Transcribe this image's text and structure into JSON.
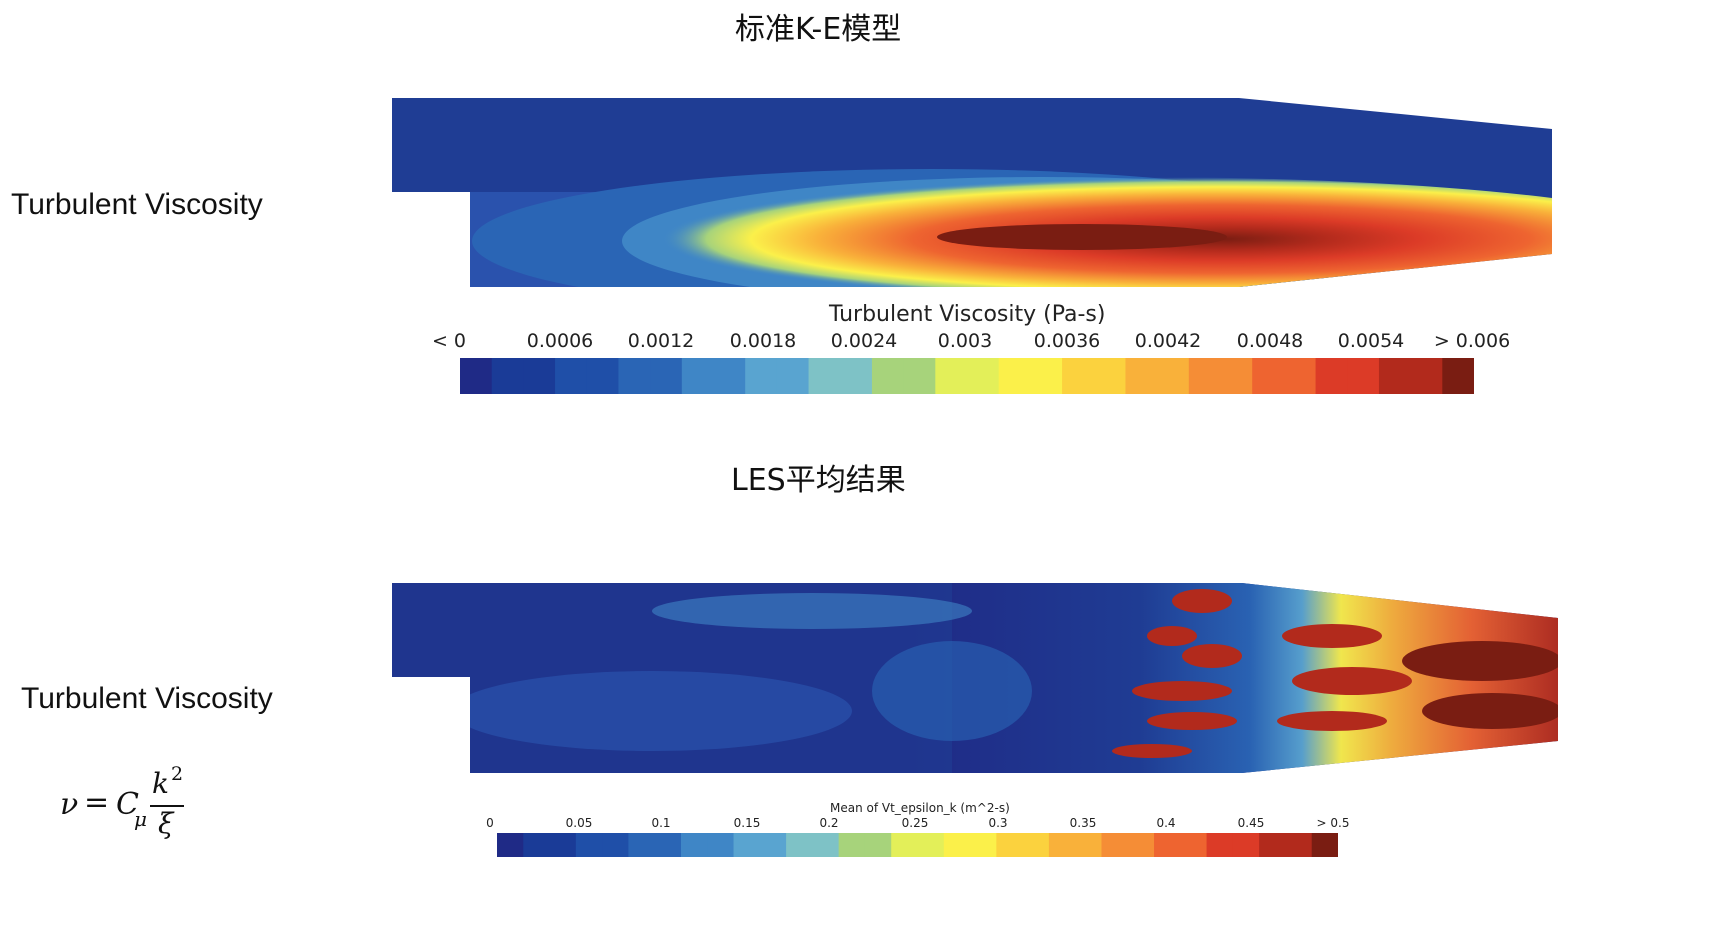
{
  "panels": [
    {
      "title": "标准K-E模型",
      "side_label": "Turbulent Viscosity",
      "colorbar": {
        "title": "Turbulent Viscosity (Pa-s)",
        "ticks": [
          "< 0",
          "0.0006",
          "0.0012",
          "0.0018",
          "0.0024",
          "0.003",
          "0.0036",
          "0.0042",
          "0.0048",
          "0.0054",
          "> 0.006"
        ]
      }
    },
    {
      "title": "LES平均结果",
      "side_label": "Turbulent Viscosity",
      "colorbar": {
        "title": "Mean of Vt_epsilon_k (m^2-s)",
        "ticks": [
          "0",
          "0.05",
          "0.1",
          "0.15",
          "0.2",
          "0.25",
          "0.3",
          "0.35",
          "0.4",
          "0.45",
          "> 0.5"
        ]
      }
    }
  ],
  "formula": {
    "lhs": "ν",
    "eq": "=",
    "coef": "C",
    "sub": "μ",
    "num": "k",
    "num_sup": "2",
    "den": "ξ"
  },
  "colors": {
    "colormap": [
      "#1f2a86",
      "#1a3b97",
      "#1f4fa8",
      "#2a65b5",
      "#3f86c6",
      "#59a4d0",
      "#7ec2c6",
      "#a7d37b",
      "#e3ef59",
      "#fbf04a",
      "#fbd23e",
      "#f9b13a",
      "#f58d36",
      "#ee6430",
      "#dc3b27",
      "#b22a1c",
      "#7a1d12"
    ],
    "background_blue": "#1f3d94"
  }
}
